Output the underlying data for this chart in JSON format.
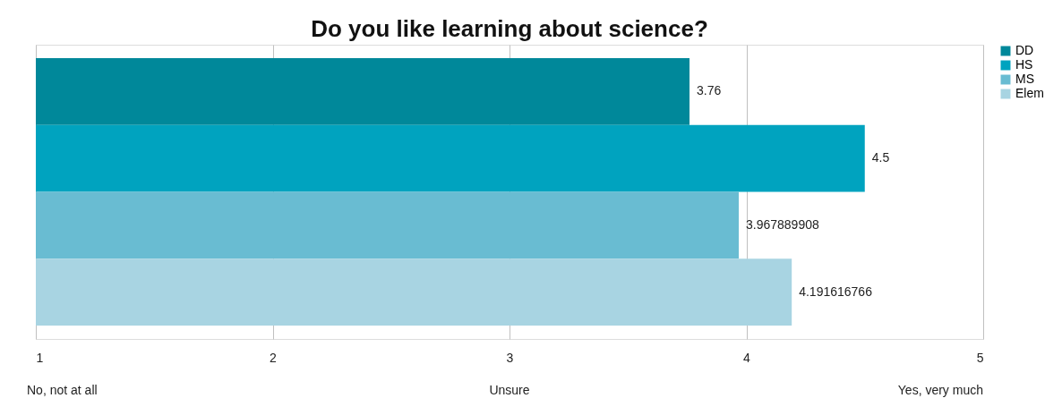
{
  "chart_data": {
    "type": "bar",
    "title": "Do you like learning about science?",
    "orientation": "horizontal",
    "categories": [
      null
    ],
    "series": [
      {
        "name": "DD",
        "color": "#00889a",
        "values": [
          3.76
        ],
        "value_labels": [
          "3.76"
        ]
      },
      {
        "name": "HS",
        "color": "#00a3bf",
        "values": [
          4.5
        ],
        "value_labels": [
          "4.5"
        ]
      },
      {
        "name": "MS",
        "color": "#69bcd2",
        "values": [
          3.967889908
        ],
        "value_labels": [
          "3.967889908"
        ]
      },
      {
        "name": "Elem",
        "color": "#a8d4e2",
        "values": [
          4.191616766
        ],
        "value_labels": [
          "4.191616766"
        ]
      }
    ],
    "xlim": [
      1,
      5
    ],
    "xticks": [
      1,
      2,
      3,
      4,
      5
    ],
    "annotations": [
      "No, not at all",
      "Unsure",
      "Yes, very much"
    ],
    "grid": "x",
    "legend": "right"
  }
}
